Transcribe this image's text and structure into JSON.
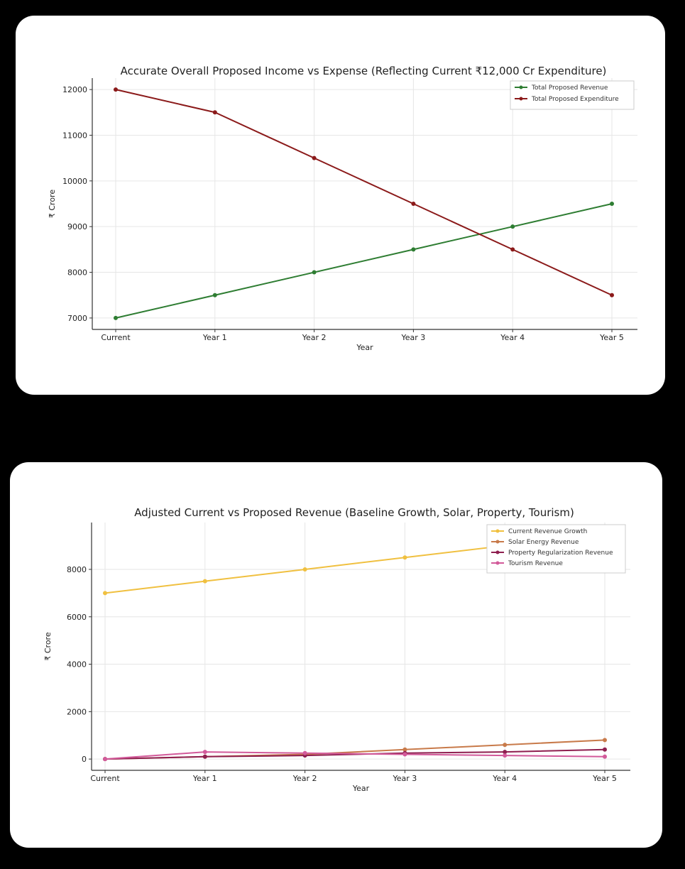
{
  "chart_data": [
    {
      "type": "line",
      "title": "Accurate Overall Proposed Income vs Expense (Reflecting Current ₹12,000 Cr Expenditure)",
      "xlabel": "Year",
      "ylabel": "₹ Crore",
      "categories": [
        "Current",
        "Year 1",
        "Year 2",
        "Year 3",
        "Year 4",
        "Year 5"
      ],
      "yticks": [
        7000,
        8000,
        9000,
        10000,
        11000,
        12000
      ],
      "ylim": [
        6750,
        12250
      ],
      "grid": true,
      "legend_position": "top-right",
      "series": [
        {
          "name": "Total Proposed Revenue",
          "color": "#2e7d32",
          "values": [
            7000,
            7500,
            8000,
            8500,
            9000,
            9500
          ]
        },
        {
          "name": "Total Proposed Expenditure",
          "color": "#8b1a1a",
          "values": [
            12000,
            11500,
            10500,
            9500,
            8500,
            7500
          ]
        }
      ]
    },
    {
      "type": "line",
      "title": "Adjusted Current vs Proposed Revenue (Baseline Growth, Solar, Property, Tourism)",
      "xlabel": "Year",
      "ylabel": "₹ Crore",
      "categories": [
        "Current",
        "Year 1",
        "Year 2",
        "Year 3",
        "Year 4",
        "Year 5"
      ],
      "yticks": [
        0,
        2000,
        4000,
        6000,
        8000
      ],
      "ylim": [
        -475,
        9975
      ],
      "grid": true,
      "legend_position": "top-right",
      "series": [
        {
          "name": "Current Revenue Growth",
          "color": "#f0c040",
          "values": [
            7000,
            7500,
            8000,
            8500,
            9000,
            9500
          ]
        },
        {
          "name": "Solar Energy Revenue",
          "color": "#c87a4a",
          "values": [
            0,
            100,
            200,
            400,
            600,
            800
          ]
        },
        {
          "name": "Property Regularization Revenue",
          "color": "#8e1f4f",
          "values": [
            0,
            100,
            150,
            250,
            300,
            400
          ]
        },
        {
          "name": "Tourism Revenue",
          "color": "#d25a9a",
          "values": [
            0,
            300,
            250,
            200,
            150,
            100
          ]
        }
      ]
    }
  ]
}
